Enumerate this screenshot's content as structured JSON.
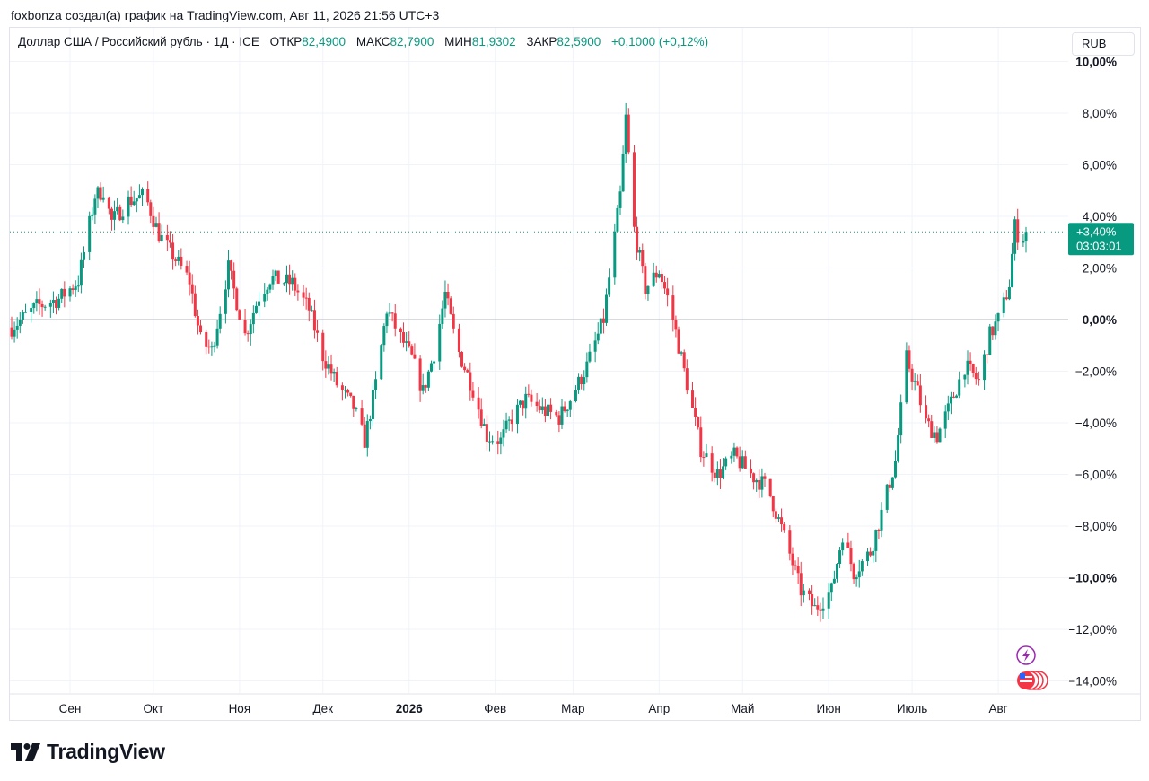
{
  "credit": "foxbonza создал(а) график на TradingView.com, Авг 11, 2026 21:56 UTC+3",
  "legend": {
    "symbol": "Доллар США / Российский рубль · 1Д · ICE",
    "open_label": "ОТКР",
    "open": "82,4900",
    "high_label": "МАКС",
    "high": "82,7900",
    "low_label": "МИН",
    "low": "81,9302",
    "close_label": "ЗАКР",
    "close": "82,5900",
    "change": "+0,1000 (+0,12%)"
  },
  "currency_badge": "RUB",
  "price_tag": {
    "value": "+3,40%",
    "countdown": "03:03:01"
  },
  "brand": "TradingView",
  "colors": {
    "up": "#089981",
    "down": "#f23645",
    "grid": "#f0f3fa",
    "text": "#131722",
    "badge": "#089981"
  },
  "chart_data": {
    "type": "candlestick",
    "y_unit": "% change",
    "ylim": [
      -14,
      10
    ],
    "y_ticks": [
      {
        "v": 10,
        "label": "10,00%",
        "bold": true
      },
      {
        "v": 8,
        "label": "8,00%"
      },
      {
        "v": 6,
        "label": "6,00%"
      },
      {
        "v": 4,
        "label": "4,00%"
      },
      {
        "v": 2,
        "label": "2,00%"
      },
      {
        "v": 0,
        "label": "0,00%",
        "bold": true
      },
      {
        "v": -2,
        "label": "−2,00%"
      },
      {
        "v": -4,
        "label": "−4,00%"
      },
      {
        "v": -6,
        "label": "−6,00%"
      },
      {
        "v": -8,
        "label": "−8,00%"
      },
      {
        "v": -10,
        "label": "−10,00%",
        "bold": true
      },
      {
        "v": -12,
        "label": "−12,00%"
      },
      {
        "v": -14,
        "label": "−14,00%"
      }
    ],
    "x_ticks": [
      {
        "date": "2025-09-01",
        "label": "Сен"
      },
      {
        "date": "2025-10-01",
        "label": "Окт"
      },
      {
        "date": "2025-11-01",
        "label": "Ноя"
      },
      {
        "date": "2025-12-01",
        "label": "Дек"
      },
      {
        "date": "2026-01-01",
        "label": "2026",
        "bold": true
      },
      {
        "date": "2026-02-01",
        "label": "Фев"
      },
      {
        "date": "2026-03-01",
        "label": "Мар"
      },
      {
        "date": "2026-04-01",
        "label": "Апр"
      },
      {
        "date": "2026-05-01",
        "label": "Май"
      },
      {
        "date": "2026-06-01",
        "label": "Июн"
      },
      {
        "date": "2026-07-01",
        "label": "Июль"
      },
      {
        "date": "2026-08-01",
        "label": "Авг"
      }
    ],
    "xlim": [
      "2025-08-11",
      "2026-08-11"
    ],
    "last_value": 3.4,
    "anchor_points": [
      [
        "2025-08-11",
        -0.3
      ],
      [
        "2025-08-20",
        0.5
      ],
      [
        "2025-08-28",
        0.8
      ],
      [
        "2025-09-04",
        1.5
      ],
      [
        "2025-09-10",
        4.8
      ],
      [
        "2025-09-13",
        5.0
      ],
      [
        "2025-09-16",
        3.8
      ],
      [
        "2025-09-22",
        4.6
      ],
      [
        "2025-09-28",
        4.8
      ],
      [
        "2025-10-03",
        3.3
      ],
      [
        "2025-10-08",
        2.5
      ],
      [
        "2025-10-14",
        1.5
      ],
      [
        "2025-10-18",
        -0.8
      ],
      [
        "2025-10-22",
        -1.2
      ],
      [
        "2025-10-28",
        2.0
      ],
      [
        "2025-11-03",
        -0.6
      ],
      [
        "2025-11-08",
        0.9
      ],
      [
        "2025-11-12",
        1.6
      ],
      [
        "2025-11-20",
        1.4
      ],
      [
        "2025-11-26",
        0.4
      ],
      [
        "2025-12-01",
        -1.4
      ],
      [
        "2025-12-06",
        -2.5
      ],
      [
        "2025-12-12",
        -3.4
      ],
      [
        "2025-12-16",
        -4.7
      ],
      [
        "2025-12-20",
        -2.5
      ],
      [
        "2025-12-24",
        0.4
      ],
      [
        "2025-12-28",
        -0.5
      ],
      [
        "2026-01-02",
        -1.5
      ],
      [
        "2026-01-06",
        -2.8
      ],
      [
        "2026-01-10",
        -1.3
      ],
      [
        "2026-01-14",
        1.0
      ],
      [
        "2026-01-18",
        -1.0
      ],
      [
        "2026-01-24",
        -2.7
      ],
      [
        "2026-01-29",
        -4.5
      ],
      [
        "2026-02-03",
        -4.7
      ],
      [
        "2026-02-07",
        -3.8
      ],
      [
        "2026-02-12",
        -3.1
      ],
      [
        "2026-02-18",
        -3.5
      ],
      [
        "2026-02-24",
        -3.8
      ],
      [
        "2026-03-01",
        -2.9
      ],
      [
        "2026-03-06",
        -1.8
      ],
      [
        "2026-03-12",
        0.0
      ],
      [
        "2026-03-18",
        4.8
      ],
      [
        "2026-03-20",
        7.8
      ],
      [
        "2026-03-23",
        3.5
      ],
      [
        "2026-03-27",
        1.2
      ],
      [
        "2026-04-01",
        1.9
      ],
      [
        "2026-04-05",
        0.5
      ],
      [
        "2026-04-10",
        -2.0
      ],
      [
        "2026-04-16",
        -5.0
      ],
      [
        "2026-04-22",
        -6.0
      ],
      [
        "2026-04-28",
        -5.3
      ],
      [
        "2026-05-05",
        -6.1
      ],
      [
        "2026-05-10",
        -6.5
      ],
      [
        "2026-05-16",
        -8.4
      ],
      [
        "2026-05-22",
        -10.5
      ],
      [
        "2026-05-27",
        -11.2
      ],
      [
        "2026-06-02",
        -10.5
      ],
      [
        "2026-06-06",
        -8.3
      ],
      [
        "2026-06-10",
        -9.8
      ],
      [
        "2026-06-16",
        -9.0
      ],
      [
        "2026-06-20",
        -7.5
      ],
      [
        "2026-06-25",
        -5.5
      ],
      [
        "2026-06-29",
        -1.5
      ],
      [
        "2026-07-03",
        -2.8
      ],
      [
        "2026-07-06",
        -4.0
      ],
      [
        "2026-07-10",
        -4.5
      ],
      [
        "2026-07-14",
        -3.5
      ],
      [
        "2026-07-20",
        -1.8
      ],
      [
        "2026-07-25",
        -2.4
      ],
      [
        "2026-07-29",
        -0.6
      ],
      [
        "2026-08-02",
        0.2
      ],
      [
        "2026-08-05",
        1.4
      ],
      [
        "2026-08-07",
        3.6
      ],
      [
        "2026-08-09",
        3.0
      ],
      [
        "2026-08-11",
        3.4
      ]
    ]
  }
}
